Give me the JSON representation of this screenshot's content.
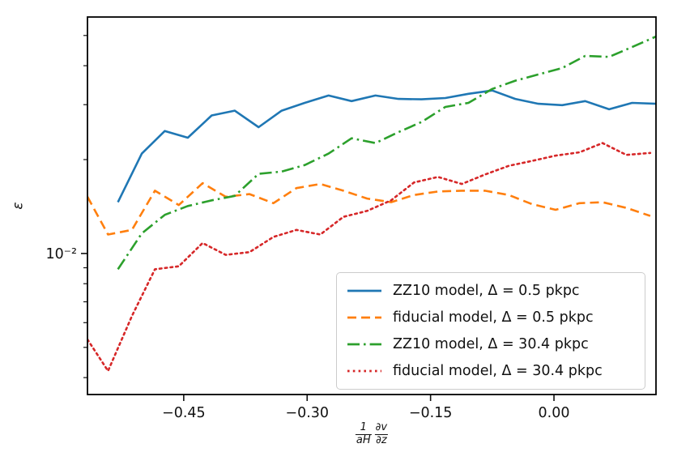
{
  "figure": {
    "background": "#ffffff",
    "axis_color": "#000000",
    "text_color": "#111111"
  },
  "chart_data": {
    "type": "line",
    "title": "",
    "ylabel": "ε",
    "xlabel": {
      "frac1_num": "1",
      "frac1_den": "aH",
      "frac2_num": "∂v",
      "frac2_den": "∂z"
    },
    "xlim": [
      -0.567,
      0.124
    ],
    "ylim": [
      0.00353,
      0.0573
    ],
    "yscale": "log",
    "grid": "off",
    "legend_position": "lower right",
    "xticks": [
      {
        "value": -0.45,
        "label": "−0.45"
      },
      {
        "value": -0.3,
        "label": "−0.30"
      },
      {
        "value": -0.15,
        "label": "−0.15"
      },
      {
        "value": 0.0,
        "label": "0.00"
      }
    ],
    "ytick_major": {
      "value": 0.01,
      "label": "10⁻²"
    },
    "yticks_minor": [
      0.004,
      0.005,
      0.006,
      0.007,
      0.008,
      0.009,
      0.02,
      0.03,
      0.04,
      0.05
    ],
    "series": [
      {
        "name": "ZZ10 model, Δ = 0.5 pkpc",
        "color": "#1f77b4",
        "style": "solid",
        "x": [
          -0.53,
          -0.501,
          -0.473,
          -0.445,
          -0.416,
          -0.388,
          -0.359,
          -0.331,
          -0.303,
          -0.274,
          -0.246,
          -0.217,
          -0.189,
          -0.161,
          -0.132,
          -0.104,
          -0.075,
          -0.047,
          -0.019,
          0.01,
          0.038,
          0.067,
          0.095,
          0.124
        ],
        "y": [
          0.0146,
          0.0209,
          0.0247,
          0.0235,
          0.0277,
          0.0287,
          0.0254,
          0.0287,
          0.0304,
          0.0321,
          0.0308,
          0.0321,
          0.0313,
          0.0312,
          0.0315,
          0.0325,
          0.0333,
          0.0313,
          0.0302,
          0.0299,
          0.0308,
          0.029,
          0.0304,
          0.0302
        ]
      },
      {
        "name": "fiducial model, Δ = 0.5 pkpc",
        "color": "#ff7f0e",
        "style": "dashed",
        "x": [
          -0.567,
          -0.542,
          -0.513,
          -0.485,
          -0.456,
          -0.427,
          -0.399,
          -0.37,
          -0.341,
          -0.313,
          -0.284,
          -0.256,
          -0.227,
          -0.198,
          -0.17,
          -0.141,
          -0.112,
          -0.084,
          -0.055,
          -0.027,
          0.002,
          0.031,
          0.059,
          0.088,
          0.117
        ],
        "y": [
          0.0152,
          0.0115,
          0.0119,
          0.0159,
          0.0143,
          0.0168,
          0.0152,
          0.0155,
          0.0145,
          0.0162,
          0.0167,
          0.0159,
          0.015,
          0.0146,
          0.0154,
          0.0158,
          0.0159,
          0.0159,
          0.0154,
          0.0144,
          0.0138,
          0.0145,
          0.0146,
          0.014,
          0.0132
        ]
      },
      {
        "name": "ZZ10 model, Δ = 30.4 pkpc",
        "color": "#2ca02c",
        "style": "dashdot",
        "x": [
          -0.53,
          -0.501,
          -0.473,
          -0.445,
          -0.416,
          -0.388,
          -0.359,
          -0.331,
          -0.303,
          -0.274,
          -0.246,
          -0.217,
          -0.189,
          -0.161,
          -0.132,
          -0.104,
          -0.075,
          -0.047,
          -0.019,
          0.01,
          0.038,
          0.067,
          0.095,
          0.124
        ],
        "y": [
          0.0089,
          0.0116,
          0.0133,
          0.0142,
          0.0148,
          0.0153,
          0.018,
          0.0183,
          0.0192,
          0.0209,
          0.0234,
          0.0226,
          0.0245,
          0.0264,
          0.0295,
          0.0304,
          0.0337,
          0.0358,
          0.0375,
          0.0393,
          0.043,
          0.0427,
          0.0459,
          0.0496
        ]
      },
      {
        "name": "fiducial model, Δ = 30.4 pkpc",
        "color": "#d62728",
        "style": "dotted",
        "x": [
          -0.567,
          -0.542,
          -0.513,
          -0.485,
          -0.456,
          -0.427,
          -0.399,
          -0.37,
          -0.341,
          -0.313,
          -0.284,
          -0.256,
          -0.227,
          -0.198,
          -0.17,
          -0.141,
          -0.112,
          -0.084,
          -0.055,
          -0.027,
          0.002,
          0.031,
          0.059,
          0.088,
          0.117
        ],
        "y": [
          0.0053,
          0.0042,
          0.0063,
          0.0089,
          0.0091,
          0.0108,
          0.0099,
          0.0101,
          0.0113,
          0.0119,
          0.0115,
          0.0131,
          0.0137,
          0.0148,
          0.0169,
          0.0176,
          0.0167,
          0.0179,
          0.0191,
          0.0198,
          0.0206,
          0.0211,
          0.0226,
          0.0207,
          0.021
        ]
      }
    ]
  }
}
